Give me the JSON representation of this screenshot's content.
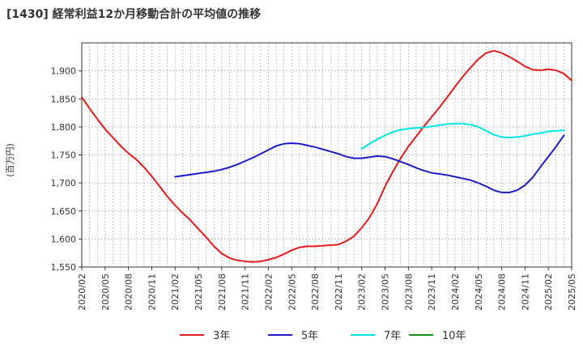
{
  "chart_data": {
    "type": "line",
    "title": "[1430]  経常利益12か月移動合計の平均値の推移",
    "ylabel": "(百万円)",
    "xlabel": "",
    "ylim": [
      1550,
      1950
    ],
    "yticks": [
      1550,
      1600,
      1650,
      1700,
      1750,
      1800,
      1850,
      1900
    ],
    "ytick_labels": [
      "1,550",
      "1,600",
      "1,650",
      "1,700",
      "1,750",
      "1,800",
      "1,850",
      "1,900"
    ],
    "xticks": [
      "2020/02",
      "2020/05",
      "2020/08",
      "2020/11",
      "2021/02",
      "2021/05",
      "2021/08",
      "2021/11",
      "2022/02",
      "2022/05",
      "2022/08",
      "2022/11",
      "2023/02",
      "2023/05",
      "2023/08",
      "2023/11",
      "2024/02",
      "2024/05",
      "2024/08",
      "2024/11",
      "2025/02",
      "2025/05"
    ],
    "grid": true,
    "legend_position": "bottom",
    "series": [
      {
        "name": "3年",
        "color": "#e31a1c",
        "points": [
          [
            "2020/02",
            1853
          ],
          [
            "2020/03",
            1833
          ],
          [
            "2020/04",
            1814
          ],
          [
            "2020/05",
            1796
          ],
          [
            "2020/06",
            1781
          ],
          [
            "2020/07",
            1766
          ],
          [
            "2020/08",
            1753
          ],
          [
            "2020/09",
            1742
          ],
          [
            "2020/10",
            1728
          ],
          [
            "2020/11",
            1712
          ],
          [
            "2020/12",
            1694
          ],
          [
            "2021/01",
            1676
          ],
          [
            "2021/02",
            1660
          ],
          [
            "2021/03",
            1646
          ],
          [
            "2021/04",
            1633
          ],
          [
            "2021/05",
            1618
          ],
          [
            "2021/06",
            1603
          ],
          [
            "2021/07",
            1587
          ],
          [
            "2021/08",
            1574
          ],
          [
            "2021/09",
            1566
          ],
          [
            "2021/10",
            1562
          ],
          [
            "2021/11",
            1560
          ],
          [
            "2021/12",
            1559
          ],
          [
            "2022/01",
            1560
          ],
          [
            "2022/02",
            1563
          ],
          [
            "2022/03",
            1567
          ],
          [
            "2022/04",
            1573
          ],
          [
            "2022/05",
            1580
          ],
          [
            "2022/06",
            1585
          ],
          [
            "2022/07",
            1587
          ],
          [
            "2022/08",
            1587
          ],
          [
            "2022/09",
            1588
          ],
          [
            "2022/10",
            1589
          ],
          [
            "2022/11",
            1590
          ],
          [
            "2022/12",
            1596
          ],
          [
            "2023/01",
            1605
          ],
          [
            "2023/02",
            1620
          ],
          [
            "2023/03",
            1638
          ],
          [
            "2023/04",
            1663
          ],
          [
            "2023/05",
            1694
          ],
          [
            "2023/06",
            1720
          ],
          [
            "2023/07",
            1744
          ],
          [
            "2023/08",
            1765
          ],
          [
            "2023/09",
            1783
          ],
          [
            "2023/10",
            1801
          ],
          [
            "2023/11",
            1818
          ],
          [
            "2023/12",
            1835
          ],
          [
            "2024/01",
            1853
          ],
          [
            "2024/02",
            1872
          ],
          [
            "2024/03",
            1890
          ],
          [
            "2024/04",
            1906
          ],
          [
            "2024/05",
            1921
          ],
          [
            "2024/06",
            1932
          ],
          [
            "2024/07",
            1936
          ],
          [
            "2024/08",
            1932
          ],
          [
            "2024/09",
            1925
          ],
          [
            "2024/10",
            1917
          ],
          [
            "2024/11",
            1908
          ],
          [
            "2024/12",
            1902
          ],
          [
            "2025/01",
            1901
          ],
          [
            "2025/02",
            1903
          ],
          [
            "2025/03",
            1901
          ],
          [
            "2025/04",
            1895
          ],
          [
            "2025/05",
            1883
          ]
        ]
      },
      {
        "name": "5年",
        "color": "#1c1cc8",
        "points": [
          [
            "2021/02",
            1711
          ],
          [
            "2021/03",
            1713
          ],
          [
            "2021/04",
            1715
          ],
          [
            "2021/05",
            1717
          ],
          [
            "2021/06",
            1719
          ],
          [
            "2021/07",
            1721
          ],
          [
            "2021/08",
            1724
          ],
          [
            "2021/09",
            1728
          ],
          [
            "2021/10",
            1733
          ],
          [
            "2021/11",
            1739
          ],
          [
            "2021/12",
            1745
          ],
          [
            "2022/01",
            1752
          ],
          [
            "2022/02",
            1759
          ],
          [
            "2022/03",
            1766
          ],
          [
            "2022/04",
            1770
          ],
          [
            "2022/05",
            1771
          ],
          [
            "2022/06",
            1770
          ],
          [
            "2022/07",
            1767
          ],
          [
            "2022/08",
            1764
          ],
          [
            "2022/09",
            1760
          ],
          [
            "2022/10",
            1756
          ],
          [
            "2022/11",
            1752
          ],
          [
            "2022/12",
            1747
          ],
          [
            "2023/01",
            1744
          ],
          [
            "2023/02",
            1744
          ],
          [
            "2023/03",
            1746
          ],
          [
            "2023/04",
            1748
          ],
          [
            "2023/05",
            1747
          ],
          [
            "2023/06",
            1743
          ],
          [
            "2023/07",
            1738
          ],
          [
            "2023/08",
            1733
          ],
          [
            "2023/09",
            1727
          ],
          [
            "2023/10",
            1722
          ],
          [
            "2023/11",
            1718
          ],
          [
            "2023/12",
            1716
          ],
          [
            "2024/01",
            1714
          ],
          [
            "2024/02",
            1711
          ],
          [
            "2024/03",
            1708
          ],
          [
            "2024/04",
            1705
          ],
          [
            "2024/05",
            1700
          ],
          [
            "2024/06",
            1694
          ],
          [
            "2024/07",
            1687
          ],
          [
            "2024/08",
            1683
          ],
          [
            "2024/09",
            1683
          ],
          [
            "2024/10",
            1687
          ],
          [
            "2024/11",
            1696
          ],
          [
            "2024/12",
            1710
          ],
          [
            "2025/01",
            1729
          ],
          [
            "2025/02",
            1747
          ],
          [
            "2025/03",
            1765
          ],
          [
            "2025/04",
            1785
          ]
        ]
      },
      {
        "name": "7年",
        "color": "#00e5e5",
        "points": [
          [
            "2023/02",
            1761
          ],
          [
            "2023/03",
            1770
          ],
          [
            "2023/04",
            1778
          ],
          [
            "2023/05",
            1785
          ],
          [
            "2023/06",
            1791
          ],
          [
            "2023/07",
            1795
          ],
          [
            "2023/08",
            1797
          ],
          [
            "2023/09",
            1798
          ],
          [
            "2023/10",
            1799
          ],
          [
            "2023/11",
            1801
          ],
          [
            "2023/12",
            1803
          ],
          [
            "2024/01",
            1805
          ],
          [
            "2024/02",
            1806
          ],
          [
            "2024/03",
            1806
          ],
          [
            "2024/04",
            1804
          ],
          [
            "2024/05",
            1800
          ],
          [
            "2024/06",
            1793
          ],
          [
            "2024/07",
            1786
          ],
          [
            "2024/08",
            1782
          ],
          [
            "2024/09",
            1781
          ],
          [
            "2024/10",
            1782
          ],
          [
            "2024/11",
            1784
          ],
          [
            "2024/12",
            1787
          ],
          [
            "2025/01",
            1789
          ],
          [
            "2025/02",
            1792
          ],
          [
            "2025/03",
            1793
          ],
          [
            "2025/04",
            1794
          ]
        ]
      },
      {
        "name": "10年",
        "color": "#1e8c1e",
        "points": []
      }
    ]
  }
}
